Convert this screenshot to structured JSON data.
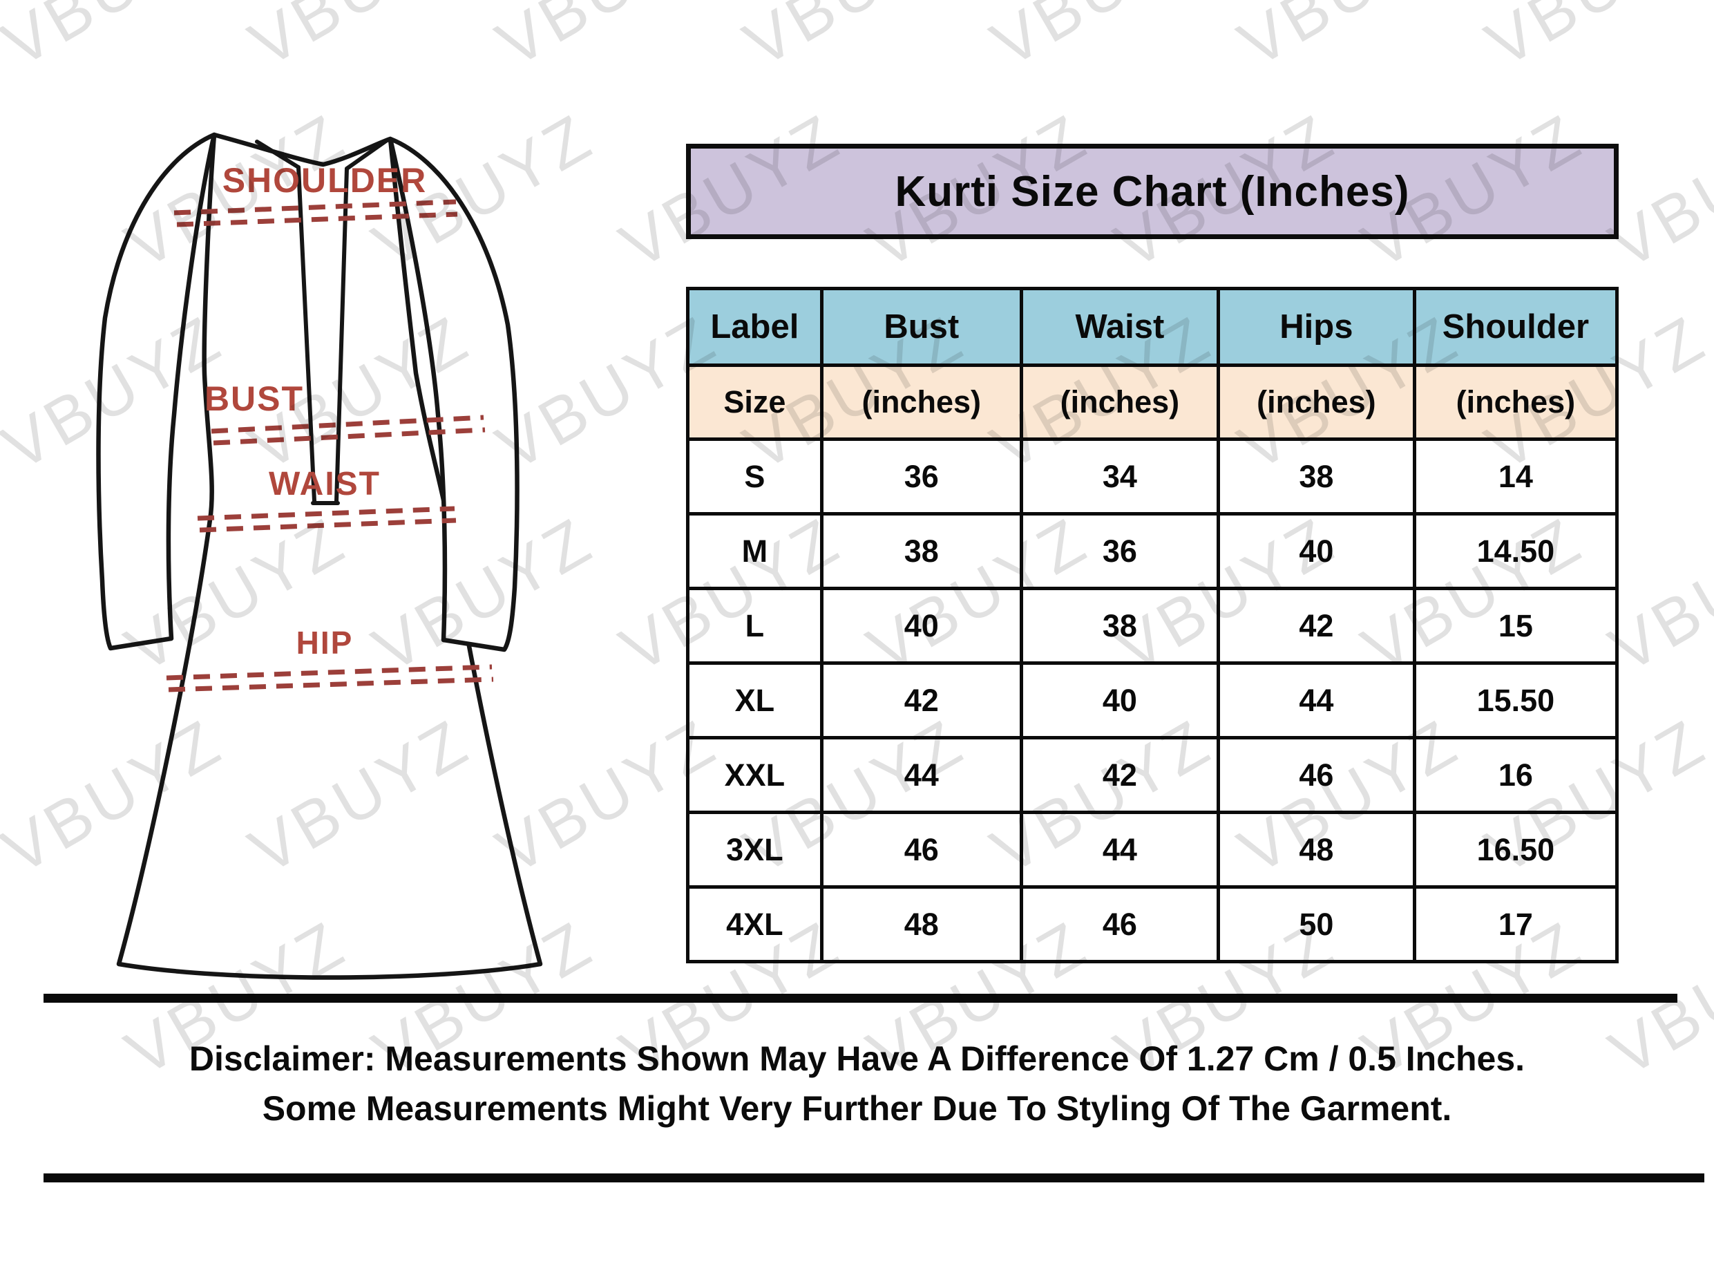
{
  "watermark": {
    "text": "VBUYZ"
  },
  "title": {
    "text": "Kurti Size Chart (Inches)"
  },
  "sketch": {
    "shoulder_label": "SHOULDER",
    "bust_label": "BUST",
    "waist_label": "WAIST",
    "hip_label": "HIP"
  },
  "colors": {
    "title_bg": "#cdc3dc",
    "header_bg": "#9ccedd",
    "subheader_bg": "#fbe7d3",
    "label_red": "#b0473c",
    "dash_red": "#9c3f3a"
  },
  "table": {
    "header": {
      "label": "Label",
      "bust": "Bust",
      "waist": "Waist",
      "hips": "Hips",
      "shoulder": "Shoulder"
    },
    "subheader": {
      "label": "Size",
      "bust": "(inches)",
      "waist": "(inches)",
      "hips": "(inches)",
      "shoulder": "(inches)"
    },
    "rows": [
      {
        "label": "S",
        "bust": "36",
        "waist": "34",
        "hips": "38",
        "shoulder": "14"
      },
      {
        "label": "M",
        "bust": "38",
        "waist": "36",
        "hips": "40",
        "shoulder": "14.50"
      },
      {
        "label": "L",
        "bust": "40",
        "waist": "38",
        "hips": "42",
        "shoulder": "15"
      },
      {
        "label": "XL",
        "bust": "42",
        "waist": "40",
        "hips": "44",
        "shoulder": "15.50"
      },
      {
        "label": "XXL",
        "bust": "44",
        "waist": "42",
        "hips": "46",
        "shoulder": "16"
      },
      {
        "label": "3XL",
        "bust": "46",
        "waist": "44",
        "hips": "48",
        "shoulder": "16.50"
      },
      {
        "label": "4XL",
        "bust": "48",
        "waist": "46",
        "hips": "50",
        "shoulder": "17"
      }
    ]
  },
  "disclaimer": {
    "line1": "Disclaimer: Measurements Shown May Have A Difference Of 1.27 Cm / 0.5 Inches.",
    "line2": "Some Measurements Might Very Further Due To Styling Of The Garment."
  },
  "chart_data": {
    "type": "table",
    "title": "Kurti Size Chart (Inches)",
    "columns": [
      "Label Size",
      "Bust (inches)",
      "Waist (inches)",
      "Hips (inches)",
      "Shoulder (inches)"
    ],
    "rows": [
      [
        "S",
        36,
        34,
        38,
        14
      ],
      [
        "M",
        38,
        36,
        40,
        14.5
      ],
      [
        "L",
        40,
        38,
        42,
        15
      ],
      [
        "XL",
        42,
        40,
        44,
        15.5
      ],
      [
        "XXL",
        44,
        42,
        46,
        16
      ],
      [
        "3XL",
        46,
        44,
        48,
        16.5
      ],
      [
        "4XL",
        48,
        46,
        50,
        17
      ]
    ],
    "annotations": [
      "SHOULDER",
      "BUST",
      "WAIST",
      "HIP",
      "Disclaimer: Measurements Shown May Have A Difference Of 1.27 Cm / 0.5 Inches.",
      "Some Measurements Might Very Further Due To Styling Of The Garment."
    ]
  }
}
